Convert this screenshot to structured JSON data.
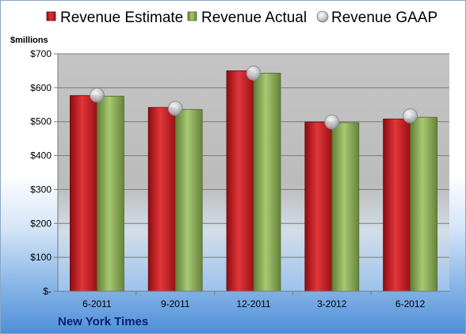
{
  "company": "New York Times",
  "chart_data": {
    "type": "bar",
    "ylabel": "$millions",
    "ylim": [
      0,
      700
    ],
    "yticks": [
      0,
      100,
      200,
      300,
      400,
      500,
      600,
      700
    ],
    "ytick_labels": [
      "$-",
      "$100",
      "$200",
      "$300",
      "$400",
      "$500",
      "$600",
      "$700"
    ],
    "categories": [
      "6-2011",
      "9-2011",
      "12-2011",
      "3-2012",
      "6-2012"
    ],
    "series": [
      {
        "name": "Revenue Estimate",
        "kind": "bar",
        "color": "#c0171c",
        "values": [
          577,
          542,
          650,
          499,
          508
        ]
      },
      {
        "name": "Revenue Actual",
        "kind": "bar",
        "color": "#8aab55",
        "values": [
          575,
          536,
          643,
          497,
          513
        ]
      },
      {
        "name": "Revenue GAAP",
        "kind": "marker",
        "color": "#c8ccd2",
        "values": [
          578,
          539,
          643,
          499,
          517
        ]
      }
    ],
    "legend_position": "top",
    "grid": true
  }
}
